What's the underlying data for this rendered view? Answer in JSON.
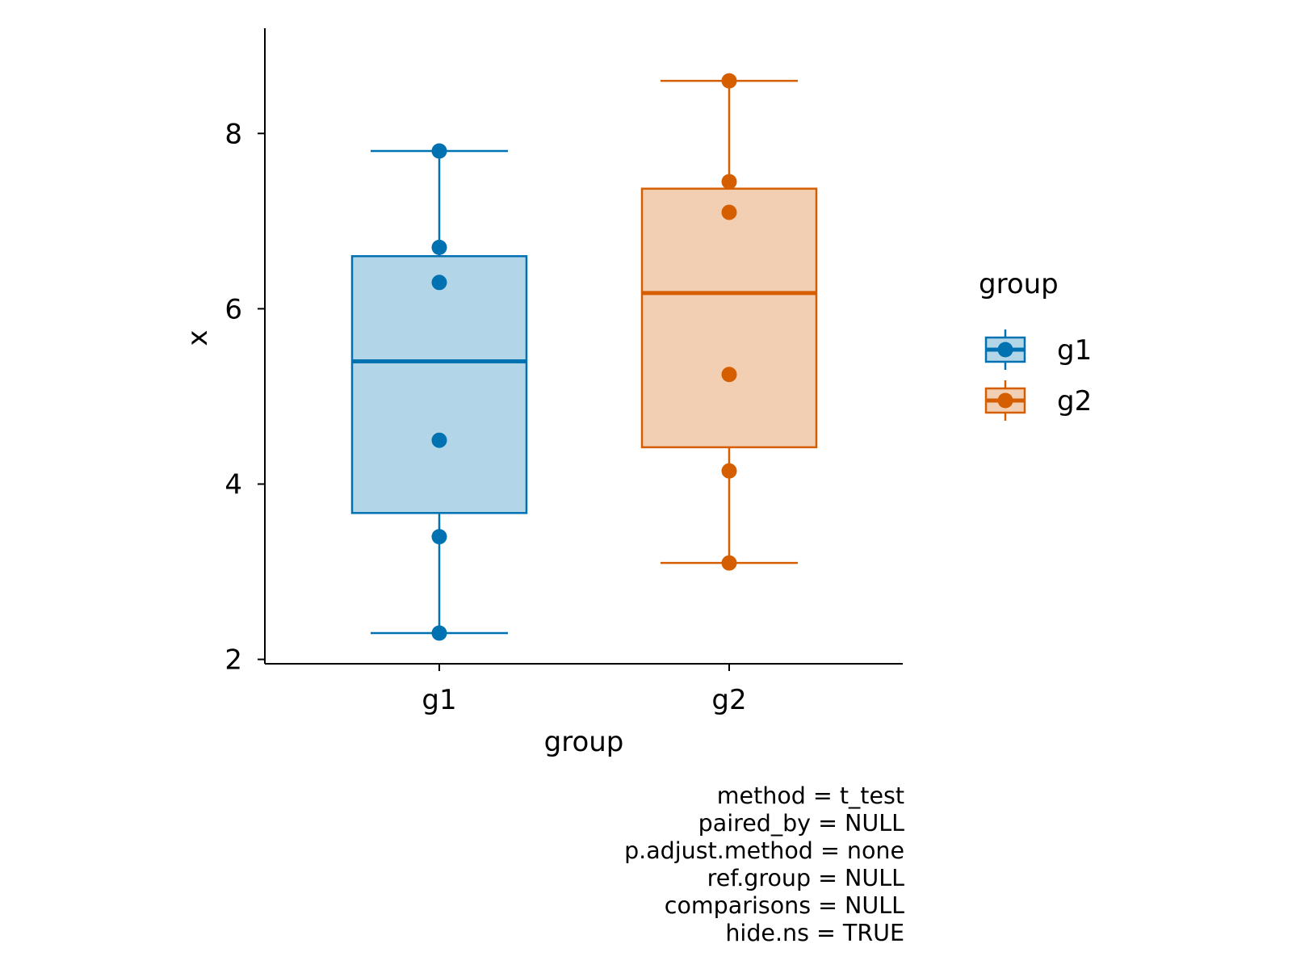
{
  "chart_data": {
    "type": "box",
    "title": "",
    "xlabel": "group",
    "ylabel": "x",
    "ylim": [
      1.95,
      9.2
    ],
    "yticks": [
      2,
      4,
      6,
      8
    ],
    "categories": [
      "g1",
      "g2"
    ],
    "groups": [
      {
        "name": "g1",
        "color": "#0072B2",
        "fill": "#B3D5E8",
        "box": {
          "min": 2.3,
          "q1": 3.67,
          "median": 5.4,
          "q3": 6.6,
          "max": 7.8
        },
        "points": [
          2.3,
          3.4,
          4.5,
          6.3,
          6.7,
          7.8
        ]
      },
      {
        "name": "g2",
        "color": "#D55E00",
        "fill": "#F2CFB3",
        "box": {
          "min": 3.1,
          "q1": 4.42,
          "median": 6.18,
          "q3": 7.37,
          "max": 8.6
        },
        "points": [
          3.1,
          4.15,
          5.25,
          7.1,
          7.45,
          8.6
        ]
      }
    ],
    "legend": {
      "title": "group",
      "placement": "right",
      "entries": [
        "g1",
        "g2"
      ]
    },
    "caption": [
      "method = t_test",
      "paired_by = NULL",
      "p.adjust.method = none",
      "ref.group = NULL",
      "comparisons = NULL",
      "hide.ns = TRUE"
    ],
    "grid": false
  }
}
